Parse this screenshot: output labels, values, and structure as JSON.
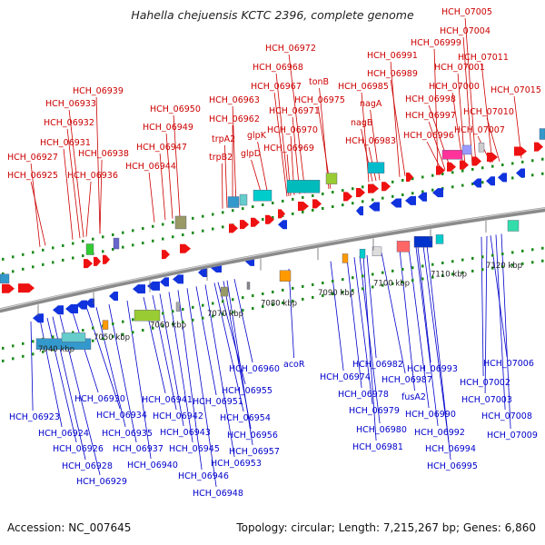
{
  "title": "Hahella chejuensis KCTC 2396, complete genome",
  "accession_text": "Accession: NC_007645",
  "topology_text": "Topology: circular; Length: 7,215,267 bp; Genes: 6,860",
  "colors": {
    "top_labels": "#cc0000",
    "bottom_labels": "#0000cc",
    "forward_arrow": "#ee1111",
    "reverse_arrow": "#1133dd",
    "backbone": "#888888"
  },
  "scale_ticks": [
    "7040 kbp",
    "7050 kbp",
    "7060 kbp",
    "7070 kbp",
    "7080 kbp",
    "7090 kbp",
    "7100 kbp",
    "7110 kbp",
    "7120 kbp"
  ],
  "top_labels": [
    "HCH_06925",
    "HCH_06927",
    "HCH_06931",
    "HCH_06932",
    "HCH_06933",
    "HCH_06939",
    "HCH_06936",
    "HCH_06938",
    "HCH_06944",
    "HCH_06947",
    "HCH_06949",
    "HCH_06950",
    "trpB2",
    "trpA2",
    "HCH_06962",
    "HCH_06963",
    "glpD",
    "glpK",
    "HCH_06969",
    "HCH_06970",
    "HCH_06971",
    "HCH_06967",
    "HCH_06968",
    "HCH_06972",
    "HCH_06975",
    "tonB",
    "HCH_06983",
    "nagB",
    "nagA",
    "HCH_06985",
    "HCH_06989",
    "HCH_06991",
    "HCH_06996",
    "HCH_06997",
    "HCH_06998",
    "HCH_06999",
    "HCH_07000",
    "HCH_07001",
    "HCH_07004",
    "HCH_07005",
    "HCH_07007",
    "HCH_07010",
    "HCH_07011",
    "HCH_07015"
  ],
  "bottom_labels": [
    "HCH_06923",
    "HCH_06924",
    "HCH_06926",
    "HCH_06928",
    "HCH_06929",
    "HCH_06930",
    "HCH_06934",
    "HCH_06935",
    "HCH_06937",
    "HCH_06940",
    "HCH_06941",
    "HCH_06942",
    "HCH_06943",
    "HCH_06945",
    "HCH_06946",
    "HCH_06948",
    "HCH_06951",
    "HCH_06953",
    "HCH_06954",
    "HCH_06955",
    "HCH_06956",
    "HCH_06957",
    "HCH_06960",
    "acoR",
    "HCH_06974",
    "HCH_06978",
    "HCH_06979",
    "HCH_06980",
    "HCH_06981",
    "HCH_06982",
    "HCH_06987",
    "fusA2",
    "HCH_06990",
    "HCH_06992",
    "HCH_06993",
    "HCH_06994",
    "HCH_06995",
    "HCH_07002",
    "HCH_07003",
    "HCH_07006",
    "HCH_07008",
    "HCH_07009"
  ]
}
